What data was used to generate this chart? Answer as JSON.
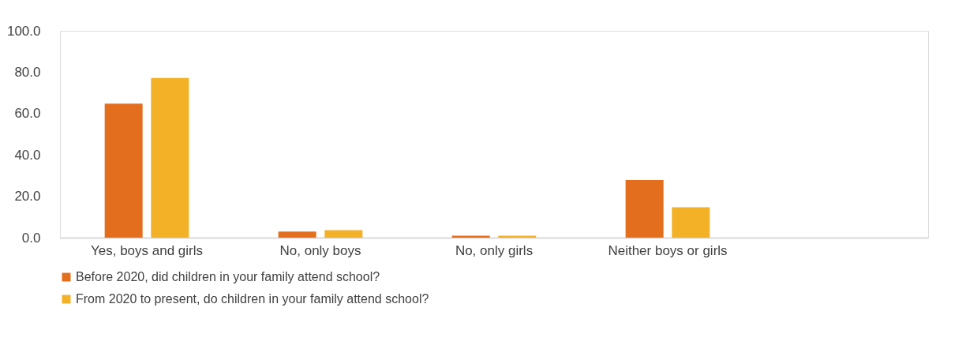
{
  "chart_data": {
    "type": "bar",
    "categories": [
      "Yes, boys and girls",
      "No, only boys",
      "No, only girls",
      "Neither boys or girls",
      null
    ],
    "series": [
      {
        "name": "Before 2020, did children in your family attend school?",
        "color": "#e36f1e",
        "values": [
          64.8,
          3.0,
          1.0,
          27.9,
          null
        ]
      },
      {
        "name": "From 2020 to present, do children  in your family attend school?",
        "color": "#f2b126",
        "values": [
          77.2,
          3.6,
          1.0,
          14.7,
          null
        ]
      }
    ],
    "ylim": [
      0,
      100
    ],
    "yticks": [
      {
        "value": 0,
        "label": "0.0"
      },
      {
        "value": 20,
        "label": "20.0"
      },
      {
        "value": 40,
        "label": "40.0"
      },
      {
        "value": 60,
        "label": "60.0"
      },
      {
        "value": 80,
        "label": "80.0"
      },
      {
        "value": 100,
        "label": "100.0"
      }
    ],
    "grid": false,
    "legend": "bottom"
  }
}
